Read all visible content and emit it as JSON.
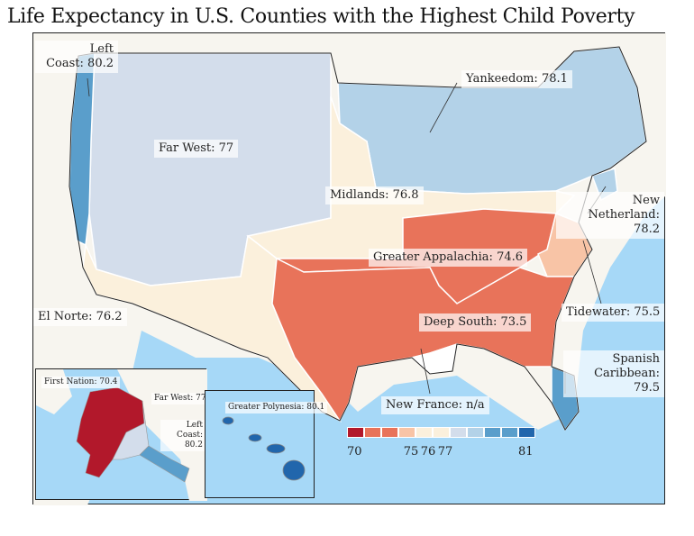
{
  "title": "Life Expectancy in U.S. Counties with the Highest Child Poverty",
  "regions": [
    {
      "name": "Left Coast",
      "value": 80.2,
      "label": "Left\nCoast: 80.2",
      "color": "#5a9ecb"
    },
    {
      "name": "Far West",
      "value": 77,
      "label": "Far West: 77",
      "color": "#d3ddeb"
    },
    {
      "name": "Yankeedom",
      "value": 78.1,
      "label": "Yankeedom: 78.1",
      "color": "#b3d2e8"
    },
    {
      "name": "Midlands",
      "value": 76.8,
      "label": "Midlands: 76.8",
      "color": "#fbf0dc"
    },
    {
      "name": "New Netherland",
      "value": 78.2,
      "label": "New Netherland:\n78.2",
      "color": "#b3d2e8"
    },
    {
      "name": "Greater Appalachia",
      "value": 74.6,
      "label": "Greater Appalachia: 74.6",
      "color": "#e8735a"
    },
    {
      "name": "El Norte",
      "value": 76.2,
      "label": "El Norte: 76.2",
      "color": "#fbf0dc"
    },
    {
      "name": "Tidewater",
      "value": 75.5,
      "label": "Tidewater: 75.5",
      "color": "#f8c4a6"
    },
    {
      "name": "Deep South",
      "value": 73.5,
      "label": "Deep South: 73.5",
      "color": "#e8735a"
    },
    {
      "name": "Spanish Caribbean",
      "value": 79.5,
      "label": "Spanish\nCaribbean: 79.5",
      "color": "#5a9ecb"
    },
    {
      "name": "New France",
      "value": null,
      "label": "New France: n/a",
      "color": "#ffffff"
    }
  ],
  "alaska_inset": {
    "first_nation": "First Nation: 70.4",
    "far_west": "Far West: 77",
    "left_coast": "Left Coast:\n80.2",
    "colors": {
      "first_nation": "#b2182b",
      "far_west": "#d3ddeb",
      "left_coast": "#5a9ecb"
    }
  },
  "hawaii_inset": {
    "label": "Greater Polynesia: 80.1",
    "color": "#2166ac"
  },
  "legend": {
    "colors": [
      "#b2182b",
      "#e8735a",
      "#e8735a",
      "#f8c4a6",
      "#fbf0dc",
      "#fbf0dc",
      "#d3ddeb",
      "#b3d2e8",
      "#5a9ecb",
      "#5a9ecb",
      "#2166ac"
    ],
    "ticks": [
      "70",
      "75",
      "76",
      "77",
      "81"
    ]
  },
  "colors": {
    "ocean": "#a6d8f7",
    "land": "#f7f5ef"
  }
}
